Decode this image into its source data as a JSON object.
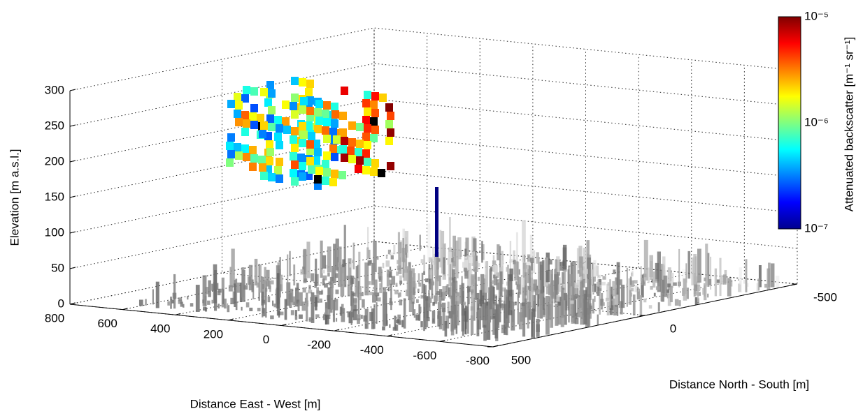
{
  "chart_data": {
    "type": "surface3d",
    "xlabel": "Distance East - West [m]",
    "ylabel": "Distance North - South [m]",
    "zlabel": "Elevation [m a.s.l.]",
    "xlim": [
      800,
      -800
    ],
    "xticks": [
      800,
      600,
      400,
      200,
      0,
      -200,
      -400,
      -600,
      -800
    ],
    "ylim": [
      500,
      -500
    ],
    "yticks": [
      500,
      0,
      -500
    ],
    "zlim": [
      0,
      300
    ],
    "zticks": [
      0,
      50,
      100,
      150,
      200,
      250,
      300
    ],
    "grid": true,
    "colorbar": {
      "label": "Attenuated backscatter [m⁻¹ sr⁻¹]",
      "scale": "log",
      "colormap": "jet",
      "lim": [
        1e-07,
        1e-05
      ],
      "ticks": [
        {
          "value": 1e-07,
          "label": "10⁻⁷"
        },
        {
          "value": 1e-06,
          "label": "10⁻⁶"
        },
        {
          "value": 1e-05,
          "label": "10⁻⁵"
        }
      ]
    }
  }
}
